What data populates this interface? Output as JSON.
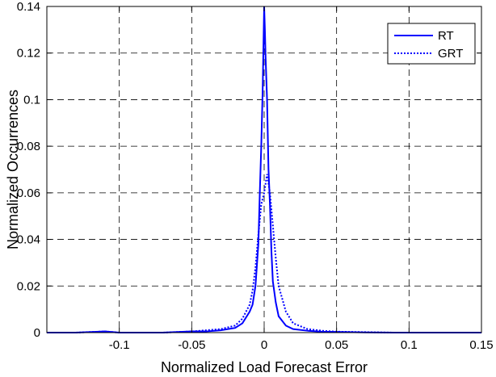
{
  "chart_data": {
    "type": "line",
    "title": "",
    "xlabel": "Normalized Load Forecast Error",
    "ylabel": "Normalized Occurrences",
    "xlim": [
      -0.15,
      0.15
    ],
    "ylim": [
      0,
      0.14
    ],
    "xticks": [
      -0.1,
      -0.05,
      0,
      0.05,
      0.1,
      0.15
    ],
    "xtick_labels": [
      "-0.1",
      "-0.05",
      "0",
      "0.05",
      "0.1",
      "0.15"
    ],
    "yticks": [
      0,
      0.02,
      0.04,
      0.06,
      0.08,
      0.1,
      0.12,
      0.14
    ],
    "ytick_labels": [
      "0",
      "0.02",
      "0.04",
      "0.06",
      "0.08",
      "0.1",
      "0.12",
      "0.14"
    ],
    "grid": true,
    "legend_position": "top-right",
    "series": [
      {
        "name": "RT",
        "style": "solid",
        "color": "#0000ff",
        "x": [
          -0.15,
          -0.13,
          -0.11,
          -0.1,
          -0.09,
          -0.07,
          -0.05,
          -0.04,
          -0.03,
          -0.02,
          -0.015,
          -0.01,
          -0.008,
          -0.006,
          -0.004,
          -0.003,
          -0.002,
          -0.001,
          0,
          0.0005,
          0.001,
          0.002,
          0.003,
          0.004,
          0.005,
          0.006,
          0.008,
          0.01,
          0.015,
          0.02,
          0.03,
          0.04,
          0.05,
          0.07,
          0.09,
          0.11,
          0.13,
          0.15
        ],
        "y": [
          0,
          0,
          0.0005,
          0,
          0,
          0,
          0.0005,
          0.0005,
          0.001,
          0.002,
          0.004,
          0.009,
          0.012,
          0.02,
          0.038,
          0.06,
          0.08,
          0.105,
          0.14,
          0.13,
          0.118,
          0.1,
          0.07,
          0.055,
          0.035,
          0.022,
          0.013,
          0.007,
          0.003,
          0.0015,
          0.0008,
          0.0004,
          0.0003,
          0.0001,
          0,
          0,
          0,
          0
        ]
      },
      {
        "name": "GRT",
        "style": "dotted",
        "color": "#0000ff",
        "x": [
          -0.15,
          -0.13,
          -0.11,
          -0.1,
          -0.09,
          -0.07,
          -0.05,
          -0.04,
          -0.03,
          -0.02,
          -0.015,
          -0.01,
          -0.008,
          -0.006,
          -0.004,
          -0.002,
          0,
          0.002,
          0.004,
          0.006,
          0.008,
          0.01,
          0.015,
          0.02,
          0.03,
          0.04,
          0.05,
          0.07,
          0.09,
          0.11,
          0.13,
          0.15
        ],
        "y": [
          0,
          0,
          0.0005,
          0,
          0,
          0,
          0.0005,
          0.001,
          0.0015,
          0.003,
          0.006,
          0.012,
          0.018,
          0.028,
          0.042,
          0.055,
          0.06,
          0.068,
          0.06,
          0.046,
          0.032,
          0.02,
          0.009,
          0.004,
          0.0015,
          0.0008,
          0.0004,
          0.0002,
          0,
          0,
          0,
          0
        ]
      }
    ]
  }
}
